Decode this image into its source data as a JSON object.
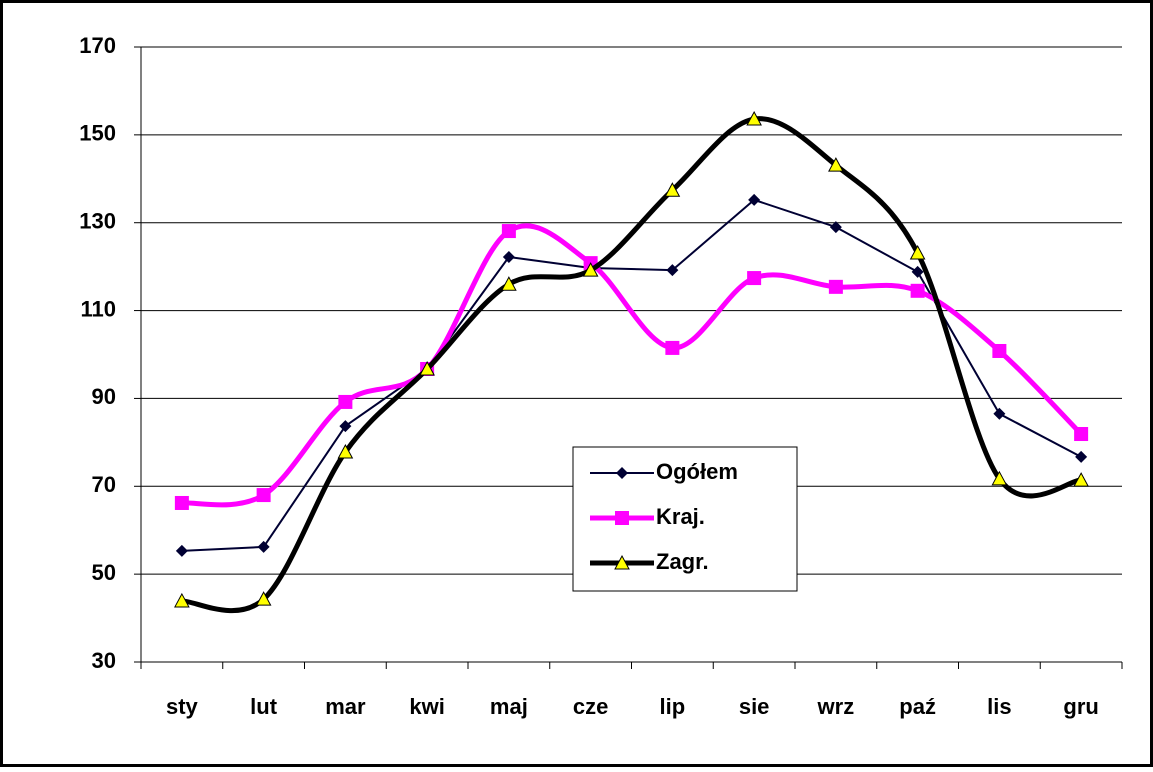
{
  "chart_data": {
    "type": "line",
    "categories": [
      "sty",
      "lut",
      "mar",
      "kwi",
      "maj",
      "cze",
      "lip",
      "sie",
      "wrz",
      "paź",
      "lis",
      "gru"
    ],
    "series": [
      {
        "name": "Ogółem",
        "color": "#000033",
        "marker": "diamond",
        "smooth": false,
        "values": [
          55.3,
          56.2,
          83.7,
          96.7,
          122.2,
          119.7,
          119.2,
          135.2,
          129,
          118.8,
          86.5,
          76.7
        ]
      },
      {
        "name": "Kraj.",
        "color": "#ff00ff",
        "marker": "square",
        "smooth": true,
        "values": [
          66.2,
          68,
          89.2,
          96.7,
          128.1,
          120.8,
          101.5,
          117.4,
          115.4,
          114.5,
          100.8,
          81.9
        ]
      },
      {
        "name": "Zagr.",
        "color": "#000000",
        "marker": "triangle",
        "smooth": true,
        "values": [
          43.9,
          44.3,
          77.8,
          96.7,
          116,
          119.2,
          137.4,
          153.6,
          143.1,
          123.1,
          71.7,
          71.4
        ]
      }
    ],
    "ylim": [
      30,
      170
    ],
    "yticks": [
      30,
      50,
      70,
      90,
      110,
      130,
      150,
      170
    ],
    "grid": true
  }
}
